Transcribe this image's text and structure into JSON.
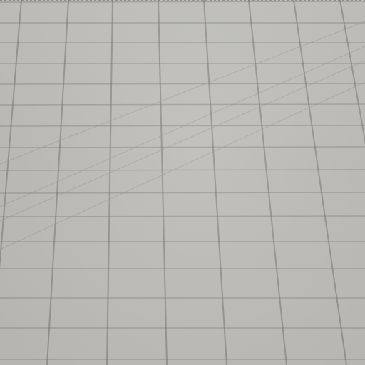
{
  "image": {
    "subject": "grid-paper-closeup",
    "colors": {
      "paper": "#bfbeb8",
      "gridline": "#7c7d7c",
      "diagonal": "#9a9b99",
      "top_edge": "#6f706f"
    }
  }
}
